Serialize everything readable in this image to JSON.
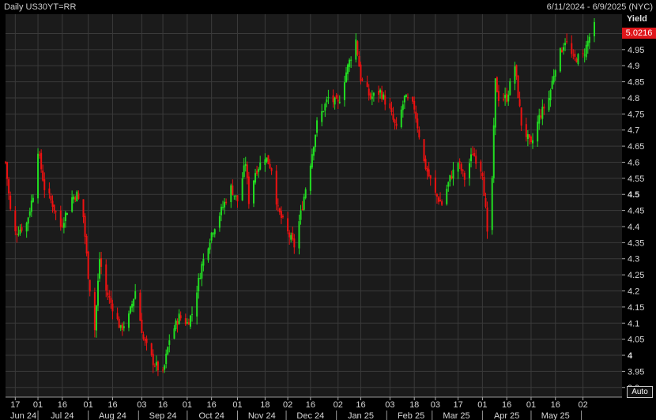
{
  "header": {
    "title": "Daily US30YT=RR",
    "range": "6/11/2024 - 6/9/2025 (NYC)"
  },
  "controls": {
    "auto_label": "Auto"
  },
  "colors": {
    "up": "#22dd22",
    "down": "#ee1111",
    "last": "#e0161b",
    "grid": "#3a3a3a",
    "plot_bg": "#1b1b1b"
  },
  "chart_data": {
    "type": "candlestick",
    "ylabel": "Yield",
    "ylim": [
      3.87,
      5.06
    ],
    "y_ticks": [
      3.9,
      3.95,
      4,
      4.05,
      4.1,
      4.15,
      4.2,
      4.25,
      4.3,
      4.35,
      4.4,
      4.45,
      4.5,
      4.55,
      4.6,
      4.65,
      4.7,
      4.75,
      4.8,
      4.85,
      4.9,
      4.95,
      5
    ],
    "y_tick_labels": [
      "3.9",
      "3.95",
      "4",
      "4.05",
      "4.1",
      "4.15",
      "4.2",
      "4.25",
      "4.3",
      "4.35",
      "4.4",
      "4.45",
      "4.5",
      "4.55",
      "4.6",
      "4.65",
      "4.7",
      "4.75",
      "4.8",
      "4.85",
      "4.9",
      "4.95",
      "5"
    ],
    "bold_ticks": [
      "4",
      "4.5",
      "5"
    ],
    "last_value": "5.0216",
    "x_range": [
      "2024-06-11",
      "2025-06-09"
    ],
    "x_day_ticks": [
      {
        "date": "2024-06-17",
        "label": "17"
      },
      {
        "date": "2024-07-01",
        "label": "01"
      },
      {
        "date": "2024-07-16",
        "label": "16"
      },
      {
        "date": "2024-08-01",
        "label": "01"
      },
      {
        "date": "2024-08-16",
        "label": "16"
      },
      {
        "date": "2024-09-03",
        "label": "03"
      },
      {
        "date": "2024-09-16",
        "label": "16"
      },
      {
        "date": "2024-10-01",
        "label": "01"
      },
      {
        "date": "2024-10-16",
        "label": "16"
      },
      {
        "date": "2024-11-01",
        "label": "01"
      },
      {
        "date": "2024-11-18",
        "label": "18"
      },
      {
        "date": "2024-12-02",
        "label": "02"
      },
      {
        "date": "2024-12-16",
        "label": "16"
      },
      {
        "date": "2025-01-02",
        "label": "02"
      },
      {
        "date": "2025-01-16",
        "label": "16"
      },
      {
        "date": "2025-02-03",
        "label": "03"
      },
      {
        "date": "2025-02-18",
        "label": "18"
      },
      {
        "date": "2025-03-03",
        "label": "03"
      },
      {
        "date": "2025-03-17",
        "label": "17"
      },
      {
        "date": "2025-04-01",
        "label": "01"
      },
      {
        "date": "2025-04-16",
        "label": "16"
      },
      {
        "date": "2025-05-01",
        "label": "01"
      },
      {
        "date": "2025-05-16",
        "label": "16"
      },
      {
        "date": "2025-06-02",
        "label": "02"
      }
    ],
    "x_month_labels": [
      {
        "date": "2024-06-22",
        "label": "Jun 24"
      },
      {
        "date": "2024-07-16",
        "label": "Jul 24"
      },
      {
        "date": "2024-08-16",
        "label": "Aug 24"
      },
      {
        "date": "2024-09-16",
        "label": "Sep 24"
      },
      {
        "date": "2024-10-16",
        "label": "Oct 24"
      },
      {
        "date": "2024-11-16",
        "label": "Nov 24"
      },
      {
        "date": "2024-12-16",
        "label": "Dec 24"
      },
      {
        "date": "2025-01-16",
        "label": "Jan 25"
      },
      {
        "date": "2025-02-16",
        "label": "Feb 25"
      },
      {
        "date": "2025-03-16",
        "label": "Mar 25"
      },
      {
        "date": "2025-04-16",
        "label": "Apr 25"
      },
      {
        "date": "2025-05-16",
        "label": "May 25"
      }
    ],
    "month_boundaries": [
      "2024-07-01",
      "2024-08-01",
      "2024-09-01",
      "2024-10-01",
      "2024-11-01",
      "2024-12-01",
      "2025-01-01",
      "2025-02-01",
      "2025-03-01",
      "2025-04-01",
      "2025-05-01",
      "2025-06-01"
    ],
    "close_path": [
      {
        "date": "2024-06-11",
        "y": 4.6
      },
      {
        "date": "2024-06-14",
        "y": 4.45
      },
      {
        "date": "2024-06-17",
        "y": 4.38
      },
      {
        "date": "2024-06-24",
        "y": 4.41
      },
      {
        "date": "2024-06-28",
        "y": 4.5
      },
      {
        "date": "2024-07-01",
        "y": 4.64
      },
      {
        "date": "2024-07-05",
        "y": 4.52
      },
      {
        "date": "2024-07-10",
        "y": 4.47
      },
      {
        "date": "2024-07-15",
        "y": 4.4
      },
      {
        "date": "2024-07-22",
        "y": 4.49
      },
      {
        "date": "2024-07-25",
        "y": 4.5
      },
      {
        "date": "2024-07-29",
        "y": 4.43
      },
      {
        "date": "2024-08-01",
        "y": 4.25
      },
      {
        "date": "2024-08-05",
        "y": 4.08
      },
      {
        "date": "2024-08-08",
        "y": 4.3
      },
      {
        "date": "2024-08-12",
        "y": 4.2
      },
      {
        "date": "2024-08-16",
        "y": 4.15
      },
      {
        "date": "2024-08-21",
        "y": 4.08
      },
      {
        "date": "2024-08-26",
        "y": 4.12
      },
      {
        "date": "2024-08-30",
        "y": 4.2
      },
      {
        "date": "2024-09-04",
        "y": 4.05
      },
      {
        "date": "2024-09-10",
        "y": 3.98
      },
      {
        "date": "2024-09-16",
        "y": 3.94
      },
      {
        "date": "2024-09-20",
        "y": 4.05
      },
      {
        "date": "2024-09-26",
        "y": 4.12
      },
      {
        "date": "2024-10-01",
        "y": 4.1
      },
      {
        "date": "2024-10-04",
        "y": 4.13
      },
      {
        "date": "2024-10-10",
        "y": 4.28
      },
      {
        "date": "2024-10-16",
        "y": 4.38
      },
      {
        "date": "2024-10-22",
        "y": 4.45
      },
      {
        "date": "2024-10-28",
        "y": 4.52
      },
      {
        "date": "2024-11-01",
        "y": 4.48
      },
      {
        "date": "2024-11-06",
        "y": 4.6
      },
      {
        "date": "2024-11-08",
        "y": 4.48
      },
      {
        "date": "2024-11-12",
        "y": 4.57
      },
      {
        "date": "2024-11-18",
        "y": 4.62
      },
      {
        "date": "2024-11-22",
        "y": 4.58
      },
      {
        "date": "2024-11-26",
        "y": 4.45
      },
      {
        "date": "2024-12-02",
        "y": 4.38
      },
      {
        "date": "2024-12-06",
        "y": 4.34
      },
      {
        "date": "2024-12-10",
        "y": 4.44
      },
      {
        "date": "2024-12-16",
        "y": 4.6
      },
      {
        "date": "2024-12-20",
        "y": 4.72
      },
      {
        "date": "2024-12-27",
        "y": 4.8
      },
      {
        "date": "2025-01-02",
        "y": 4.78
      },
      {
        "date": "2025-01-07",
        "y": 4.88
      },
      {
        "date": "2025-01-13",
        "y": 4.98
      },
      {
        "date": "2025-01-16",
        "y": 4.86
      },
      {
        "date": "2025-01-22",
        "y": 4.8
      },
      {
        "date": "2025-01-28",
        "y": 4.82
      },
      {
        "date": "2025-02-03",
        "y": 4.76
      },
      {
        "date": "2025-02-07",
        "y": 4.7
      },
      {
        "date": "2025-02-12",
        "y": 4.8
      },
      {
        "date": "2025-02-18",
        "y": 4.77
      },
      {
        "date": "2025-02-24",
        "y": 4.6
      },
      {
        "date": "2025-03-03",
        "y": 4.5
      },
      {
        "date": "2025-03-07",
        "y": 4.47
      },
      {
        "date": "2025-03-12",
        "y": 4.55
      },
      {
        "date": "2025-03-17",
        "y": 4.6
      },
      {
        "date": "2025-03-21",
        "y": 4.55
      },
      {
        "date": "2025-03-26",
        "y": 4.63
      },
      {
        "date": "2025-04-01",
        "y": 4.57
      },
      {
        "date": "2025-04-03",
        "y": 4.45
      },
      {
        "date": "2025-04-04",
        "y": 4.37
      },
      {
        "date": "2025-04-07",
        "y": 4.55
      },
      {
        "date": "2025-04-09",
        "y": 4.85
      },
      {
        "date": "2025-04-11",
        "y": 4.8
      },
      {
        "date": "2025-04-16",
        "y": 4.8
      },
      {
        "date": "2025-04-21",
        "y": 4.9
      },
      {
        "date": "2025-04-25",
        "y": 4.72
      },
      {
        "date": "2025-05-01",
        "y": 4.65
      },
      {
        "date": "2025-05-06",
        "y": 4.74
      },
      {
        "date": "2025-05-12",
        "y": 4.8
      },
      {
        "date": "2025-05-16",
        "y": 4.9
      },
      {
        "date": "2025-05-22",
        "y": 4.98
      },
      {
        "date": "2025-05-27",
        "y": 4.92
      },
      {
        "date": "2025-06-02",
        "y": 4.93
      },
      {
        "date": "2025-06-06",
        "y": 4.99
      },
      {
        "date": "2025-06-09",
        "y": 5.0216
      }
    ]
  }
}
